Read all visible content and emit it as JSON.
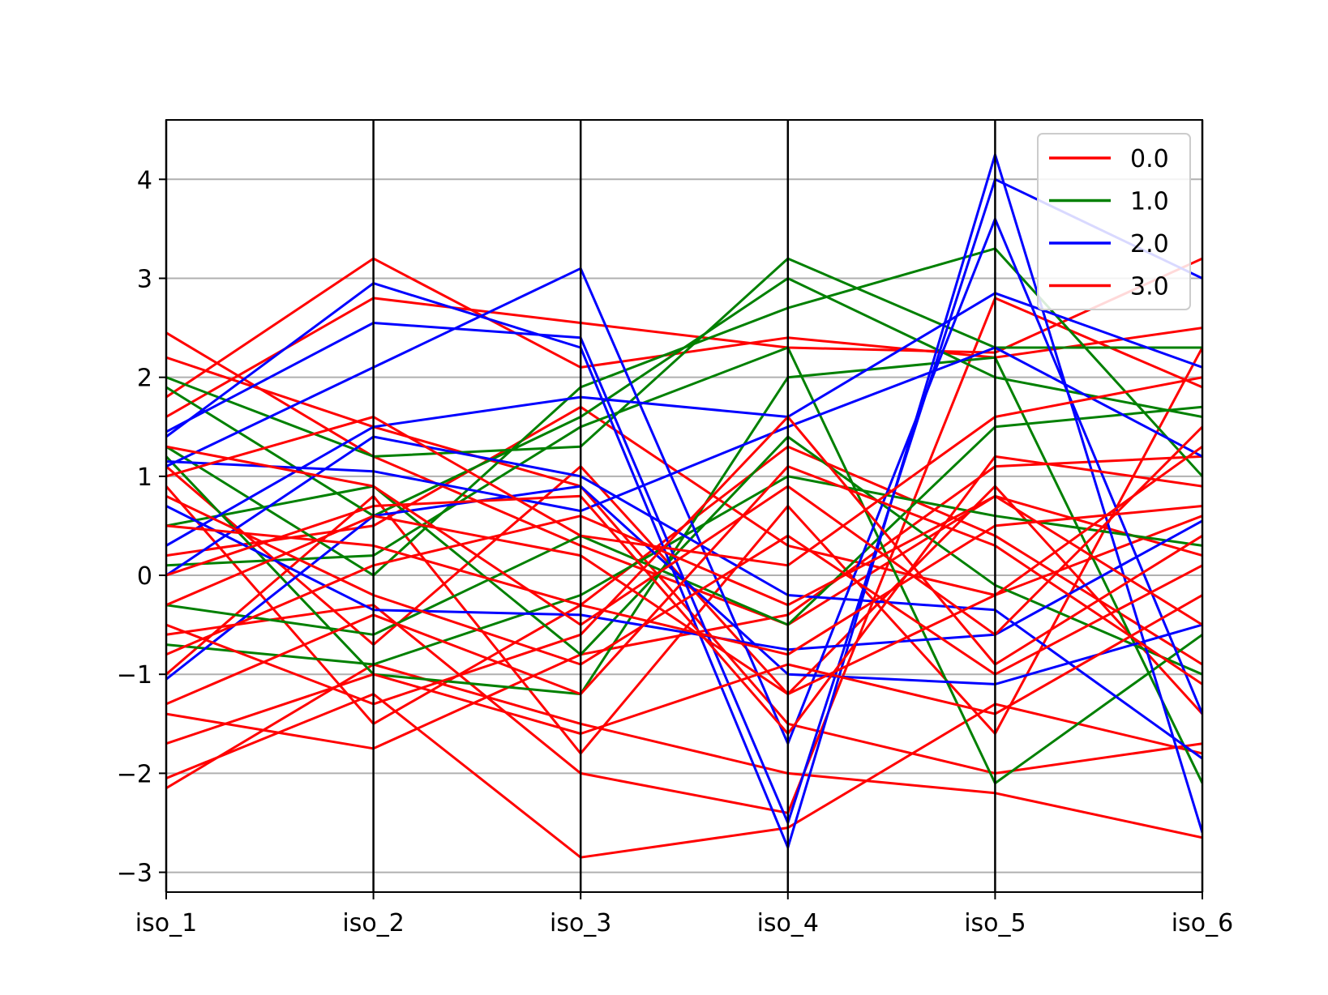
{
  "chart_data": {
    "type": "line",
    "subtype": "parallel-coordinates",
    "title": "",
    "xlabel": "",
    "ylabel": "",
    "categories": [
      "iso_1",
      "iso_2",
      "iso_3",
      "iso_4",
      "iso_5",
      "iso_6"
    ],
    "ylim": [
      -3.2,
      4.6
    ],
    "yticks": [
      -3,
      -2,
      -1,
      0,
      1,
      2,
      3,
      4
    ],
    "ytick_labels": [
      "−3",
      "−2",
      "−1",
      "0",
      "1",
      "2",
      "3",
      "4"
    ],
    "grid": "horizontal",
    "legend_position": "top-right",
    "legend": [
      {
        "label": "0.0",
        "color": "#ff0000"
      },
      {
        "label": "1.0",
        "color": "#008000"
      },
      {
        "label": "2.0",
        "color": "#0000ff"
      },
      {
        "label": "3.0",
        "color": "#ff0000"
      }
    ],
    "series": [
      {
        "class": "0.0",
        "color": "#ff0000",
        "lines": [
          [
            2.45,
            1.2,
            0.3,
            -0.5,
            0.8,
            0.2
          ],
          [
            2.2,
            1.5,
            0.9,
            -1.5,
            -2.0,
            -1.7
          ],
          [
            1.8,
            3.2,
            2.1,
            2.4,
            2.2,
            2.5
          ],
          [
            1.6,
            2.8,
            2.55,
            2.3,
            2.25,
            3.2
          ],
          [
            -2.15,
            -0.9,
            -1.5,
            -2.0,
            -2.2,
            -2.65
          ],
          [
            -2.05,
            -1.2,
            -2.85,
            -2.55,
            -1.3,
            -1.8
          ],
          [
            -1.4,
            -1.75,
            -0.8,
            -0.4,
            1.1,
            1.2
          ],
          [
            0.2,
            0.5,
            1.7,
            0.3,
            -0.2,
            0.6
          ],
          [
            -0.6,
            -0.3,
            -2.0,
            -2.4,
            2.8,
            1.9
          ],
          [
            0.9,
            -1.5,
            -0.3,
            1.3,
            0.4,
            -0.9
          ],
          [
            -1.0,
            0.8,
            -1.8,
            0.7,
            -1.6,
            2.3
          ],
          [
            1.1,
            -0.7,
            1.1,
            -1.2,
            0.9,
            -1.4
          ]
        ]
      },
      {
        "class": "1.0",
        "color": "#008000",
        "lines": [
          [
            2.0,
            1.2,
            1.3,
            3.2,
            2.3,
            2.3
          ],
          [
            1.9,
            0.6,
            1.6,
            3.0,
            2.0,
            1.6
          ],
          [
            1.3,
            0.0,
            1.9,
            2.7,
            3.3,
            1.0
          ],
          [
            1.2,
            -1.0,
            -1.2,
            2.0,
            2.2,
            -2.1
          ],
          [
            0.5,
            0.9,
            -0.8,
            1.4,
            -0.1,
            -1.0
          ],
          [
            -0.3,
            -0.6,
            0.4,
            -0.5,
            1.5,
            1.7
          ],
          [
            0.1,
            0.2,
            1.5,
            2.3,
            -2.1,
            -0.6
          ],
          [
            -0.7,
            -0.9,
            -0.2,
            1.0,
            0.6,
            0.3
          ]
        ]
      },
      {
        "class": "2.0",
        "color": "#0000ff",
        "lines": [
          [
            1.4,
            2.95,
            2.3,
            -2.75,
            4.25,
            -2.6
          ],
          [
            1.45,
            2.55,
            2.4,
            -2.5,
            4.0,
            3.0
          ],
          [
            1.1,
            2.1,
            3.1,
            -1.7,
            3.6,
            -1.4
          ],
          [
            0.3,
            1.5,
            1.8,
            1.6,
            2.85,
            2.1
          ],
          [
            1.15,
            1.05,
            0.65,
            1.5,
            2.3,
            1.2
          ],
          [
            0.7,
            -0.35,
            -0.4,
            -0.75,
            -0.6,
            0.55
          ],
          [
            -1.05,
            0.6,
            0.9,
            -1.0,
            -1.1,
            -0.5
          ],
          [
            0.0,
            1.4,
            1.0,
            -0.2,
            -0.35,
            -1.85
          ]
        ]
      },
      {
        "class": "3.0",
        "color": "#ff0000",
        "lines": [
          [
            0.5,
            0.3,
            -0.3,
            -0.8,
            0.5,
            0.7
          ],
          [
            -0.3,
            0.6,
            0.2,
            -1.2,
            -0.2,
            1.3
          ],
          [
            0.8,
            -0.2,
            -0.9,
            0.4,
            -1.0,
            0.1
          ],
          [
            -0.8,
            0.1,
            0.6,
            -0.3,
            0.8,
            -0.5
          ],
          [
            1.3,
            0.9,
            -0.5,
            0.9,
            -0.6,
            1.5
          ],
          [
            -1.3,
            -0.4,
            -1.2,
            1.1,
            0.3,
            -1.1
          ],
          [
            0.0,
            0.7,
            0.8,
            -1.6,
            1.2,
            0.9
          ],
          [
            -1.7,
            -1.0,
            -1.6,
            -0.9,
            -1.4,
            -0.2
          ],
          [
            1.0,
            1.6,
            0.4,
            0.1,
            1.6,
            2.0
          ],
          [
            -0.5,
            -1.3,
            -0.6,
            1.6,
            -0.9,
            0.4
          ]
        ]
      }
    ]
  }
}
